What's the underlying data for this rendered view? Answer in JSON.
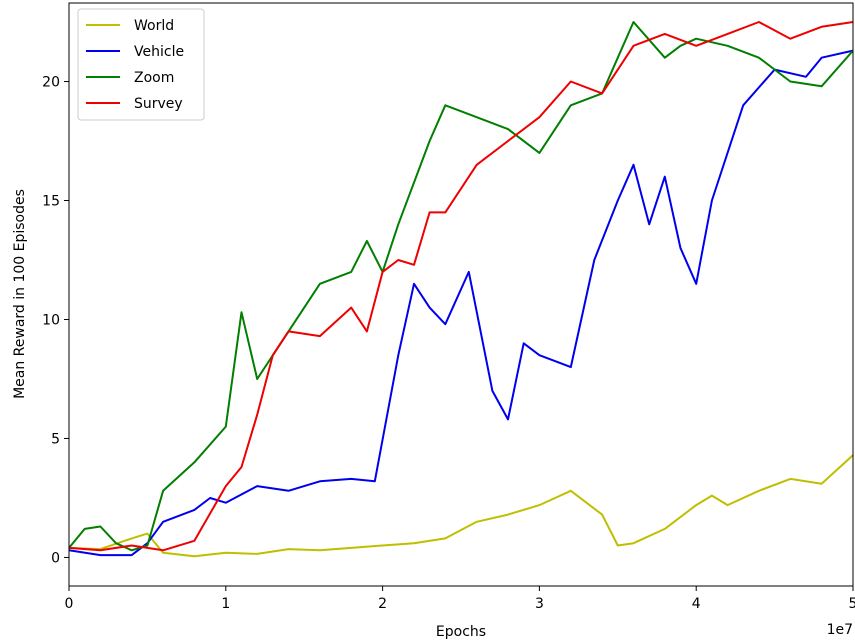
{
  "chart_data": {
    "type": "line",
    "title": "",
    "xlabel": "Epochs",
    "ylabel": "Mean Reward in 100 Episodes",
    "x_offset_label": "1e7",
    "xlim": [
      0,
      5
    ],
    "ylim": [
      -1.2,
      23.3
    ],
    "xticks": [
      0,
      1,
      2,
      3,
      4,
      5
    ],
    "xtick_labels": [
      "0",
      "1",
      "2",
      "3",
      "4",
      "5"
    ],
    "yticks": [
      0,
      5,
      10,
      15,
      20
    ],
    "ytick_labels": [
      "0",
      "5",
      "10",
      "15",
      "20"
    ],
    "grid": false,
    "legend_position": "top-left",
    "series": [
      {
        "name": "World",
        "color": "#bfbf00",
        "x": [
          0,
          0.2,
          0.4,
          0.5,
          0.6,
          0.8,
          1.0,
          1.2,
          1.4,
          1.6,
          1.8,
          2.0,
          2.2,
          2.4,
          2.6,
          2.8,
          3.0,
          3.1,
          3.2,
          3.4,
          3.5,
          3.6,
          3.8,
          4.0,
          4.1,
          4.2,
          4.4,
          4.6,
          4.8,
          5.0
        ],
        "y": [
          0.4,
          0.35,
          0.8,
          1.0,
          0.2,
          0.05,
          0.2,
          0.15,
          0.35,
          0.3,
          0.4,
          0.5,
          0.6,
          0.8,
          1.5,
          1.8,
          2.2,
          2.5,
          2.8,
          1.8,
          0.5,
          0.6,
          1.2,
          2.2,
          2.6,
          2.2,
          2.8,
          3.3,
          3.1,
          4.3
        ]
      },
      {
        "name": "Vehicle",
        "color": "#0000ee",
        "x": [
          0,
          0.2,
          0.4,
          0.5,
          0.6,
          0.8,
          0.9,
          1.0,
          1.2,
          1.4,
          1.6,
          1.8,
          1.95,
          2.1,
          2.2,
          2.3,
          2.4,
          2.55,
          2.7,
          2.8,
          2.9,
          3.0,
          3.2,
          3.35,
          3.5,
          3.6,
          3.7,
          3.8,
          3.9,
          4.0,
          4.1,
          4.3,
          4.5,
          4.7,
          4.8,
          5.0
        ],
        "y": [
          0.3,
          0.1,
          0.1,
          0.6,
          1.5,
          2.0,
          2.5,
          2.3,
          3.0,
          2.8,
          3.2,
          3.3,
          3.2,
          8.5,
          11.5,
          10.5,
          9.8,
          12.0,
          7.0,
          5.8,
          9.0,
          8.5,
          8.0,
          12.5,
          15.0,
          16.5,
          14.0,
          16.0,
          13.0,
          11.5,
          15.0,
          19.0,
          20.5,
          20.2,
          21.0,
          21.3
        ]
      },
      {
        "name": "Zoom",
        "color": "#007f00",
        "x": [
          0,
          0.1,
          0.2,
          0.3,
          0.4,
          0.5,
          0.6,
          0.8,
          1.0,
          1.1,
          1.2,
          1.4,
          1.6,
          1.8,
          1.9,
          2.0,
          2.1,
          2.3,
          2.4,
          2.6,
          2.8,
          3.0,
          3.2,
          3.4,
          3.5,
          3.6,
          3.8,
          3.9,
          4.0,
          4.2,
          4.4,
          4.6,
          4.8,
          5.0
        ],
        "y": [
          0.4,
          1.2,
          1.3,
          0.6,
          0.3,
          0.5,
          2.8,
          4.0,
          5.5,
          10.3,
          7.5,
          9.5,
          11.5,
          12.0,
          13.3,
          12.0,
          14.0,
          17.5,
          19.0,
          18.5,
          18.0,
          17.0,
          19.0,
          19.5,
          21.0,
          22.5,
          21.0,
          21.5,
          21.8,
          21.5,
          21.0,
          20.0,
          19.8,
          21.3
        ]
      },
      {
        "name": "Survey",
        "color": "#ee0000",
        "x": [
          0,
          0.2,
          0.4,
          0.6,
          0.8,
          1.0,
          1.1,
          1.2,
          1.3,
          1.4,
          1.6,
          1.8,
          1.9,
          2.0,
          2.1,
          2.2,
          2.3,
          2.4,
          2.6,
          2.8,
          3.0,
          3.2,
          3.4,
          3.6,
          3.8,
          4.0,
          4.2,
          4.4,
          4.6,
          4.8,
          5.0
        ],
        "y": [
          0.4,
          0.3,
          0.5,
          0.3,
          0.7,
          3.0,
          3.8,
          6.0,
          8.5,
          9.5,
          9.3,
          10.5,
          9.5,
          12.0,
          12.5,
          12.3,
          14.5,
          14.5,
          16.5,
          17.5,
          18.5,
          20.0,
          19.5,
          21.5,
          22.0,
          21.5,
          22.0,
          22.5,
          21.8,
          22.3,
          22.5
        ]
      }
    ]
  }
}
